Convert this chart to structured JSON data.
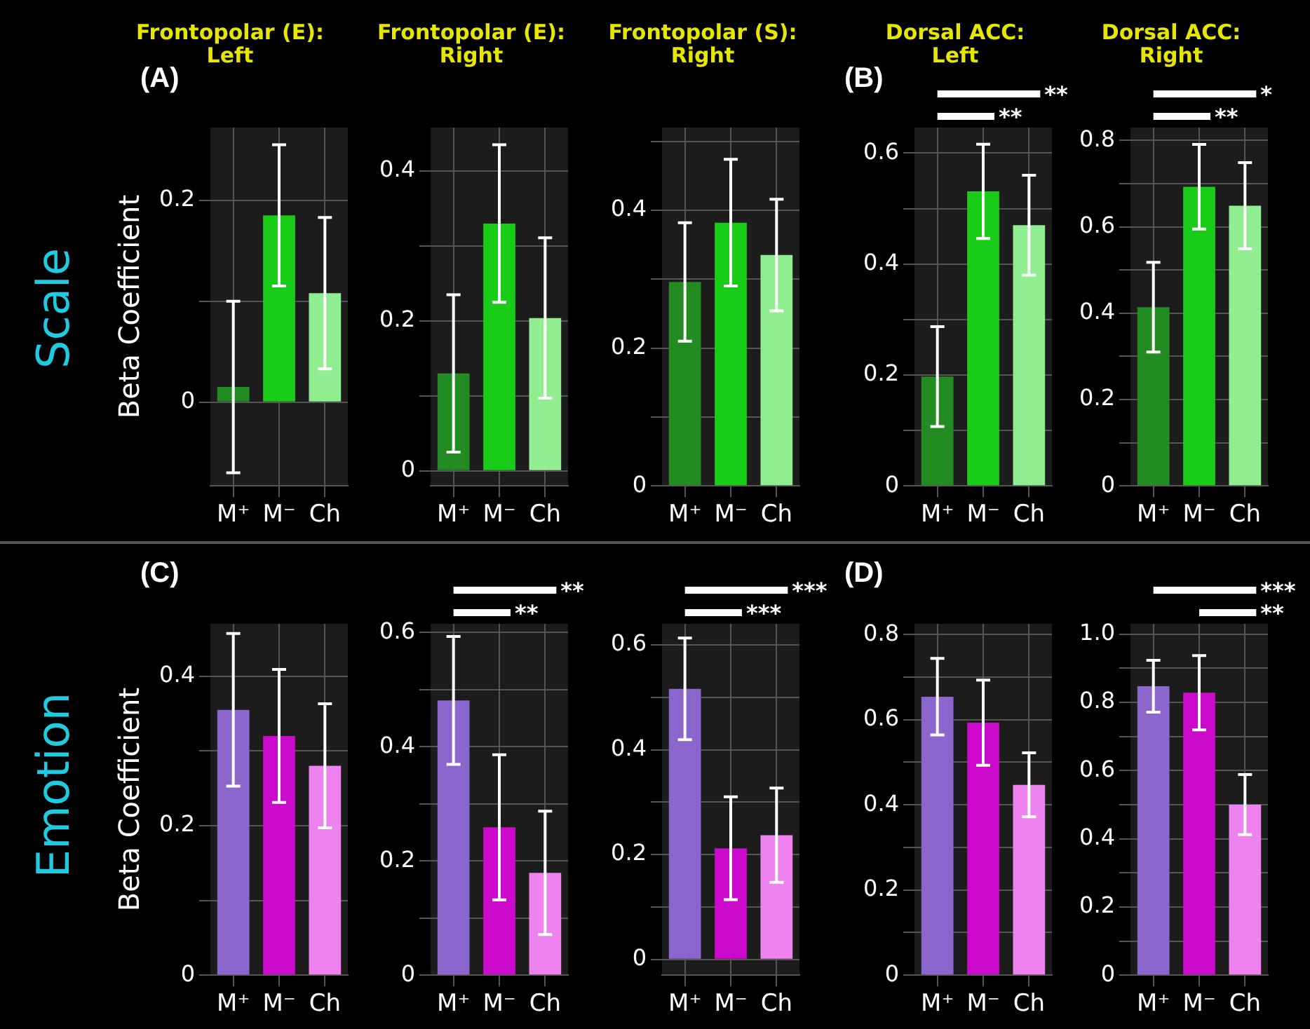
{
  "chart_data": [
    {
      "type": "bar",
      "title": "Frontopolar (E): Left",
      "ylabel": "Beta Coefficient",
      "categories": [
        "M⁺",
        "M⁻",
        "Ch"
      ],
      "values": [
        0.015,
        0.185,
        0.108
      ],
      "colors": [
        "#228b22",
        "#18cc18",
        "#90ee90"
      ],
      "errors": [
        0.085,
        0.07,
        0.075
      ],
      "ylim": [
        -0.083,
        0.272
      ],
      "yticks": [
        0,
        {
          "value": 0.1,
          "label": null
        },
        0.2
      ],
      "grid": true,
      "annotations": [
        "Scale",
        "(A)"
      ]
    },
    {
      "type": "bar",
      "title": "Frontopolar (E): Right",
      "categories": [
        "M⁺",
        "M⁻",
        "Ch"
      ],
      "values": [
        0.13,
        0.33,
        0.204
      ],
      "colors": [
        "#228b22",
        "#18cc18",
        "#90ee90"
      ],
      "errors": [
        0.105,
        0.105,
        0.107
      ],
      "ylim": [
        -0.02,
        0.458
      ],
      "yticks": [
        0,
        {
          "value": 0.1,
          "label": null
        },
        0.2,
        {
          "value": 0.3,
          "label": null
        },
        0.4
      ],
      "grid": true
    },
    {
      "type": "bar",
      "title": "Frontopolar (S): Right",
      "categories": [
        "M⁺",
        "M⁻",
        "Ch"
      ],
      "values": [
        0.296,
        0.382,
        0.335
      ],
      "colors": [
        "#228b22",
        "#18cc18",
        "#90ee90"
      ],
      "errors": [
        0.086,
        0.092,
        0.081
      ],
      "ylim": [
        0,
        0.52
      ],
      "yticks": [
        0,
        {
          "value": 0.1,
          "label": null
        },
        0.2,
        {
          "value": 0.3,
          "label": null
        },
        0.4,
        {
          "value": 0.5,
          "label": null
        }
      ],
      "grid": true
    },
    {
      "type": "bar",
      "title": "Dorsal ACC: Left",
      "categories": [
        "M⁺",
        "M⁻",
        "Ch"
      ],
      "values": [
        0.197,
        0.531,
        0.47
      ],
      "colors": [
        "#228b22",
        "#18cc18",
        "#90ee90"
      ],
      "errors": [
        0.09,
        0.085,
        0.09
      ],
      "ylim": [
        0,
        0.646
      ],
      "yticks": [
        0,
        {
          "value": 0.1,
          "label": null
        },
        0.2,
        {
          "value": 0.3,
          "label": null
        },
        0.4,
        {
          "value": 0.5,
          "label": null
        },
        0.6
      ],
      "grid": true,
      "annotations": [
        "(B)",
        "**",
        "**"
      ]
    },
    {
      "type": "bar",
      "title": "Dorsal ACC: Right",
      "categories": [
        "M⁺",
        "M⁻",
        "Ch"
      ],
      "values": [
        0.414,
        0.693,
        0.649
      ],
      "colors": [
        "#228b22",
        "#18cc18",
        "#90ee90"
      ],
      "errors": [
        0.104,
        0.098,
        0.1
      ],
      "ylim": [
        0,
        0.83
      ],
      "yticks": [
        0,
        {
          "value": 0.1,
          "label": null
        },
        0.2,
        {
          "value": 0.3,
          "label": null
        },
        0.4,
        {
          "value": 0.5,
          "label": null
        },
        0.6,
        {
          "value": 0.7,
          "label": null
        },
        0.8
      ],
      "grid": true,
      "annotations": [
        "*",
        "**"
      ]
    },
    {
      "type": "bar",
      "ylabel": "Beta Coefficient",
      "categories": [
        "M⁺",
        "M⁻",
        "Ch"
      ],
      "values": [
        0.355,
        0.32,
        0.28
      ],
      "colors": [
        "#8b66cc",
        "#cc0acc",
        "#ee82ee"
      ],
      "errors": [
        0.102,
        0.089,
        0.083
      ],
      "ylim": [
        0,
        0.47
      ],
      "yticks": [
        0,
        {
          "value": 0.1,
          "label": null
        },
        0.2,
        {
          "value": 0.3,
          "label": null
        },
        0.4
      ],
      "grid": true,
      "annotations": [
        "Emotion",
        "(C)"
      ]
    },
    {
      "type": "bar",
      "categories": [
        "M⁺",
        "M⁻",
        "Ch"
      ],
      "values": [
        0.481,
        0.259,
        0.179
      ],
      "colors": [
        "#8b66cc",
        "#cc0acc",
        "#ee82ee"
      ],
      "errors": [
        0.112,
        0.127,
        0.108
      ],
      "ylim": [
        0,
        0.615
      ],
      "yticks": [
        0,
        {
          "value": 0.1,
          "label": null
        },
        0.2,
        {
          "value": 0.3,
          "label": null
        },
        0.4,
        {
          "value": 0.5,
          "label": null
        },
        0.6
      ],
      "grid": true,
      "annotations": [
        "**",
        "**"
      ]
    },
    {
      "type": "bar",
      "categories": [
        "M⁺",
        "M⁻",
        "Ch"
      ],
      "values": [
        0.516,
        0.212,
        0.237
      ],
      "colors": [
        "#8b66cc",
        "#cc0acc",
        "#ee82ee"
      ],
      "errors": [
        0.097,
        0.098,
        0.09
      ],
      "ylim": [
        -0.03,
        0.64
      ],
      "yticks": [
        0,
        {
          "value": 0.1,
          "label": null
        },
        0.2,
        {
          "value": 0.3,
          "label": null
        },
        0.4,
        {
          "value": 0.5,
          "label": null
        },
        0.6
      ],
      "grid": true,
      "annotations": [
        "***",
        "***"
      ]
    },
    {
      "type": "bar",
      "categories": [
        "M⁺",
        "M⁻",
        "Ch"
      ],
      "values": [
        0.654,
        0.593,
        0.447
      ],
      "colors": [
        "#8b66cc",
        "#cc0acc",
        "#ee82ee"
      ],
      "errors": [
        0.09,
        0.1,
        0.075
      ],
      "ylim": [
        0,
        0.825
      ],
      "yticks": [
        0,
        {
          "value": 0.1,
          "label": null
        },
        0.2,
        {
          "value": 0.3,
          "label": null
        },
        0.4,
        {
          "value": 0.5,
          "label": null
        },
        0.6,
        {
          "value": 0.7,
          "label": null
        },
        0.8
      ],
      "grid": true,
      "annotations": [
        "(D)"
      ]
    },
    {
      "type": "bar",
      "categories": [
        "M⁺",
        "M⁻",
        "Ch"
      ],
      "values": [
        0.847,
        0.828,
        0.5
      ],
      "colors": [
        "#8b66cc",
        "#cc0acc",
        "#ee82ee"
      ],
      "errors": [
        0.076,
        0.109,
        0.088
      ],
      "ylim": [
        0,
        1.03
      ],
      "yticks": [
        0,
        {
          "value": 0.1,
          "label": null
        },
        0.2,
        {
          "value": 0.3,
          "label": null
        },
        0.4,
        {
          "value": 0.5,
          "label": null
        },
        0.6,
        {
          "value": 0.7,
          "label": null
        },
        0.8,
        {
          "value": 0.9,
          "label": null
        },
        {
          "value": 1,
          "label": "1.0"
        }
      ],
      "grid": true,
      "annotations": [
        "***",
        "**"
      ]
    }
  ]
}
